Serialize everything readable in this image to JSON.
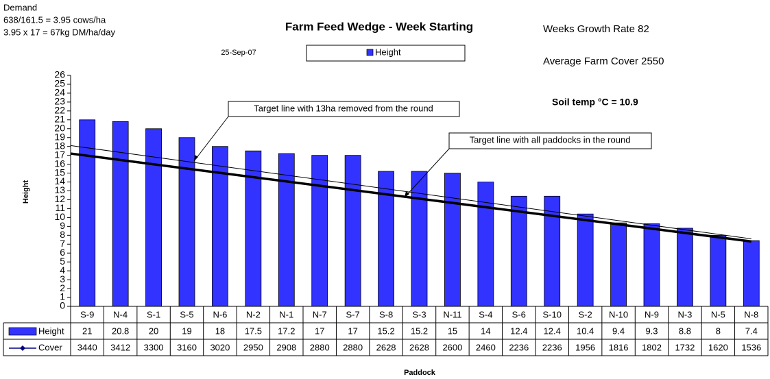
{
  "chart_data": {
    "type": "bar",
    "title": "Farm Feed Wedge - Week Starting",
    "date": "25-Sep-07",
    "notes": [
      "Demand",
      "638/161.5 = 3.95 cows/ha",
      "3.95 x 17 = 67kg DM/ha/day"
    ],
    "stats": [
      "Weeks Growth Rate 82",
      "Average Farm Cover 2550"
    ],
    "soil_temp": "Soil temp °C = 10.9",
    "y_label": "Height",
    "x_label": "Paddock",
    "categories": [
      "S-9",
      "N-4",
      "S-1",
      "S-5",
      "N-6",
      "N-2",
      "N-1",
      "N-7",
      "S-7",
      "S-8",
      "S-3",
      "N-11",
      "S-4",
      "S-6",
      "S-10",
      "S-2",
      "N-10",
      "N-9",
      "N-3",
      "N-5",
      "N-8"
    ],
    "series": [
      {
        "name": "Height",
        "color": "#3333ff",
        "values": [
          21,
          20.8,
          20,
          19,
          18,
          17.5,
          17.2,
          17,
          17,
          15.2,
          15.2,
          15,
          14,
          12.4,
          12.4,
          10.4,
          9.4,
          9.3,
          8.8,
          8,
          7.4
        ]
      },
      {
        "name": "Cover",
        "color": "#000080",
        "values": [
          3440,
          3412,
          3300,
          3160,
          3020,
          2950,
          2908,
          2880,
          2880,
          2628,
          2628,
          2600,
          2460,
          2236,
          2236,
          1956,
          1816,
          1802,
          1732,
          1620,
          1536
        ]
      }
    ],
    "target_lines": [
      {
        "label": "Target line with 13ha removed from the round",
        "values": [
          18.1,
          7.6
        ]
      },
      {
        "label": "Target line with all paddocks in the round",
        "values": [
          17.2,
          7.3
        ]
      }
    ],
    "ylim": [
      0,
      26
    ],
    "yticks": [
      0,
      1,
      2,
      3,
      4,
      5,
      6,
      7,
      8,
      9,
      10,
      11,
      12,
      13,
      14,
      15,
      16,
      17,
      18,
      19,
      20,
      21,
      22,
      23,
      24,
      25,
      26
    ]
  }
}
